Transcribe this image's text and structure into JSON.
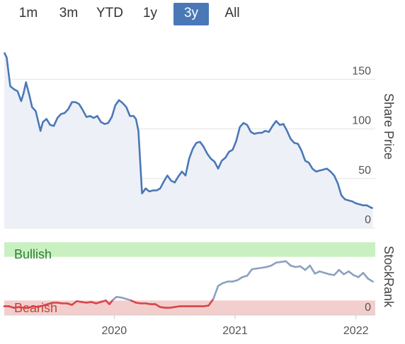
{
  "range_buttons": [
    {
      "label": "1m",
      "active": false
    },
    {
      "label": "3m",
      "active": false
    },
    {
      "label": "YTD",
      "active": false
    },
    {
      "label": "1y",
      "active": false
    },
    {
      "label": "3y",
      "active": true
    },
    {
      "label": "All",
      "active": false
    }
  ],
  "colors": {
    "accent": "#4a78b7",
    "price_line": "#4a78b7",
    "price_area": "#eef0f7",
    "bullish_zone": "#c9f0c0",
    "bearish_zone": "#f2cfcc",
    "bullish_text": "#2e7d32",
    "bearish_text": "#c0443a",
    "rank_neutral": "#8ca0c0",
    "rank_bull": "#2e9a38",
    "rank_bear": "#d6454b"
  },
  "chart_data": [
    {
      "type": "area",
      "ylabel": "Share Price",
      "yticks": [
        0,
        50,
        100,
        150
      ],
      "ylim": [
        0,
        200
      ],
      "xlim": [
        2019.09,
        2022.16
      ],
      "x": [
        2019.09,
        2019.11,
        2019.14,
        2019.17,
        2019.2,
        2019.23,
        2019.25,
        2019.27,
        2019.3,
        2019.32,
        2019.35,
        2019.37,
        2019.39,
        2019.41,
        2019.44,
        2019.47,
        2019.5,
        2019.53,
        2019.56,
        2019.59,
        2019.62,
        2019.65,
        2019.68,
        2019.71,
        2019.74,
        2019.77,
        2019.8,
        2019.83,
        2019.86,
        2019.89,
        2019.92,
        2019.95,
        2019.98,
        2020.01,
        2020.04,
        2020.07,
        2020.1,
        2020.13,
        2020.16,
        2020.18,
        2020.2,
        2020.23,
        2020.26,
        2020.29,
        2020.32,
        2020.35,
        2020.38,
        2020.41,
        2020.44,
        2020.47,
        2020.5,
        2020.53,
        2020.56,
        2020.59,
        2020.62,
        2020.65,
        2020.68,
        2020.71,
        2020.74,
        2020.77,
        2020.8,
        2020.83,
        2020.86,
        2020.89,
        2020.92,
        2020.95,
        2020.98,
        2021.01,
        2021.04,
        2021.07,
        2021.1,
        2021.13,
        2021.16,
        2021.19,
        2021.22,
        2021.25,
        2021.28,
        2021.31,
        2021.34,
        2021.37,
        2021.4,
        2021.43,
        2021.46,
        2021.49,
        2021.52,
        2021.55,
        2021.58,
        2021.61,
        2021.64,
        2021.67,
        2021.7,
        2021.73,
        2021.76,
        2021.79,
        2021.82,
        2021.85,
        2021.88,
        2021.91,
        2021.94,
        2021.97,
        2022.0,
        2022.03,
        2022.06,
        2022.09,
        2022.12,
        2022.14
      ],
      "values": [
        177,
        172,
        143,
        140,
        138,
        128,
        136,
        147,
        133,
        122,
        118,
        108,
        98,
        107,
        110,
        104,
        103,
        111,
        115,
        116,
        120,
        127,
        127,
        125,
        119,
        112,
        113,
        111,
        113,
        107,
        105,
        106,
        112,
        124,
        129,
        126,
        122,
        113,
        113,
        110,
        98,
        35,
        40,
        37,
        38,
        38,
        40,
        47,
        53,
        48,
        46,
        52,
        57,
        53,
        70,
        80,
        86,
        87,
        82,
        75,
        70,
        67,
        60,
        68,
        71,
        77,
        79,
        88,
        102,
        106,
        104,
        97,
        95,
        96,
        96,
        98,
        97,
        103,
        108,
        104,
        105,
        98,
        90,
        86,
        85,
        78,
        68,
        66,
        60,
        57,
        58,
        59,
        60,
        57,
        53,
        45,
        33,
        29,
        28,
        27,
        25,
        24,
        23,
        23,
        21,
        20
      ]
    },
    {
      "type": "line",
      "ylabel": "StockRank",
      "yticks": [
        0
      ],
      "ylim": [
        0,
        100
      ],
      "xticks": [
        "2020",
        "2021",
        "2022"
      ],
      "xlim": [
        2019.09,
        2022.16
      ],
      "zones": [
        {
          "label": "Bullish",
          "from": 80,
          "to": 100
        },
        {
          "label": "Bearish",
          "from": 0,
          "to": 20
        }
      ],
      "x": [
        2019.09,
        2019.13,
        2019.17,
        2019.21,
        2019.25,
        2019.29,
        2019.33,
        2019.37,
        2019.41,
        2019.45,
        2019.49,
        2019.53,
        2019.57,
        2019.61,
        2019.65,
        2019.69,
        2019.73,
        2019.77,
        2019.81,
        2019.85,
        2019.89,
        2019.93,
        2019.96,
        2019.99,
        2020.02,
        2020.06,
        2020.1,
        2020.14,
        2020.18,
        2020.22,
        2020.26,
        2020.3,
        2020.34,
        2020.38,
        2020.42,
        2020.46,
        2020.5,
        2020.54,
        2020.58,
        2020.62,
        2020.66,
        2020.7,
        2020.74,
        2020.78,
        2020.82,
        2020.86,
        2020.9,
        2020.94,
        2020.98,
        2021.02,
        2021.06,
        2021.1,
        2021.14,
        2021.18,
        2021.22,
        2021.26,
        2021.3,
        2021.34,
        2021.38,
        2021.42,
        2021.46,
        2021.5,
        2021.54,
        2021.58,
        2021.62,
        2021.66,
        2021.7,
        2021.74,
        2021.78,
        2021.82,
        2021.86,
        2021.9,
        2021.94,
        2021.98,
        2022.02,
        2022.06,
        2022.1,
        2022.14
      ],
      "values": [
        12,
        12,
        10,
        11,
        10,
        10,
        12,
        11,
        13,
        15,
        17,
        17,
        16,
        16,
        14,
        19,
        18,
        17,
        18,
        16,
        18,
        20,
        15,
        21,
        25,
        24,
        22,
        20,
        17,
        16,
        16,
        15,
        15,
        11,
        10,
        10,
        11,
        12,
        12,
        12,
        12,
        12,
        12,
        13,
        22,
        40,
        44,
        46,
        46,
        48,
        52,
        54,
        63,
        64,
        65,
        66,
        68,
        72,
        73,
        74,
        68,
        66,
        67,
        62,
        68,
        57,
        60,
        58,
        56,
        55,
        62,
        56,
        60,
        55,
        52,
        58,
        50,
        46
      ]
    }
  ]
}
